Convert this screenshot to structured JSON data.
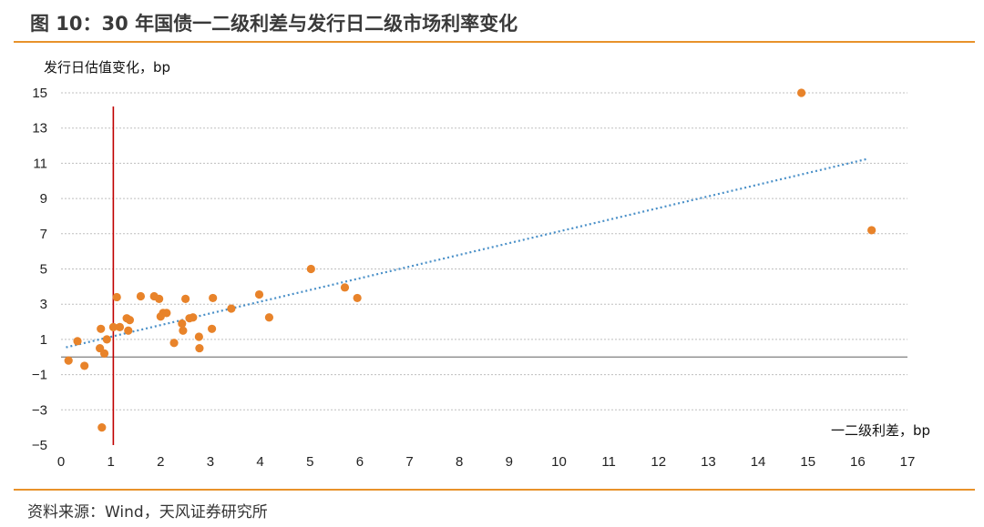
{
  "title": "图 10：30 年国债一二级利差与发行日二级市场利率变化",
  "source": "资料来源：Wind，天风证券研究所",
  "colors": {
    "accent_rule": "#e8922a",
    "points": "#e8832a",
    "trendline": "#4a90c8",
    "vertical_line": "#c00000",
    "grid": "#bfbfbf"
  },
  "chart_data": {
    "type": "scatter",
    "ylabel": "发行日估值变化，bp",
    "xlabel": "一二级利差，bp",
    "xlim": [
      0,
      17
    ],
    "ylim": [
      -5,
      15
    ],
    "x_ticks": [
      0,
      1,
      2,
      3,
      4,
      5,
      6,
      7,
      8,
      9,
      10,
      11,
      12,
      13,
      14,
      15,
      16,
      17
    ],
    "y_ticks": [
      -5,
      -3,
      -1,
      1,
      3,
      5,
      7,
      9,
      11,
      13,
      15
    ],
    "grid": "horizontal dotted",
    "vertical_reference_x": 1.05,
    "trendline": {
      "style": "dotted",
      "x": [
        0.1,
        16.2
      ],
      "y": [
        0.55,
        11.25
      ]
    },
    "points": [
      [
        0.15,
        -0.2
      ],
      [
        0.33,
        0.9
      ],
      [
        0.47,
        -0.5
      ],
      [
        0.78,
        0.5
      ],
      [
        0.8,
        1.6
      ],
      [
        0.82,
        -4.0
      ],
      [
        0.87,
        0.2
      ],
      [
        0.92,
        1.0
      ],
      [
        1.05,
        1.7
      ],
      [
        1.12,
        3.4
      ],
      [
        1.18,
        1.7
      ],
      [
        1.32,
        2.2
      ],
      [
        1.35,
        1.5
      ],
      [
        1.38,
        2.1
      ],
      [
        1.6,
        3.45
      ],
      [
        1.87,
        3.45
      ],
      [
        1.97,
        3.3
      ],
      [
        2.0,
        2.3
      ],
      [
        2.05,
        2.5
      ],
      [
        2.12,
        2.5
      ],
      [
        2.27,
        0.8
      ],
      [
        2.43,
        1.9
      ],
      [
        2.45,
        1.5
      ],
      [
        2.5,
        3.3
      ],
      [
        2.58,
        2.2
      ],
      [
        2.65,
        2.25
      ],
      [
        2.77,
        1.15
      ],
      [
        2.78,
        0.5
      ],
      [
        3.03,
        1.6
      ],
      [
        3.05,
        3.35
      ],
      [
        3.42,
        2.75
      ],
      [
        3.98,
        3.55
      ],
      [
        4.18,
        2.25
      ],
      [
        5.02,
        5.0
      ],
      [
        5.7,
        3.95
      ],
      [
        5.95,
        3.35
      ],
      [
        14.87,
        15.0
      ],
      [
        16.28,
        7.2
      ]
    ]
  }
}
